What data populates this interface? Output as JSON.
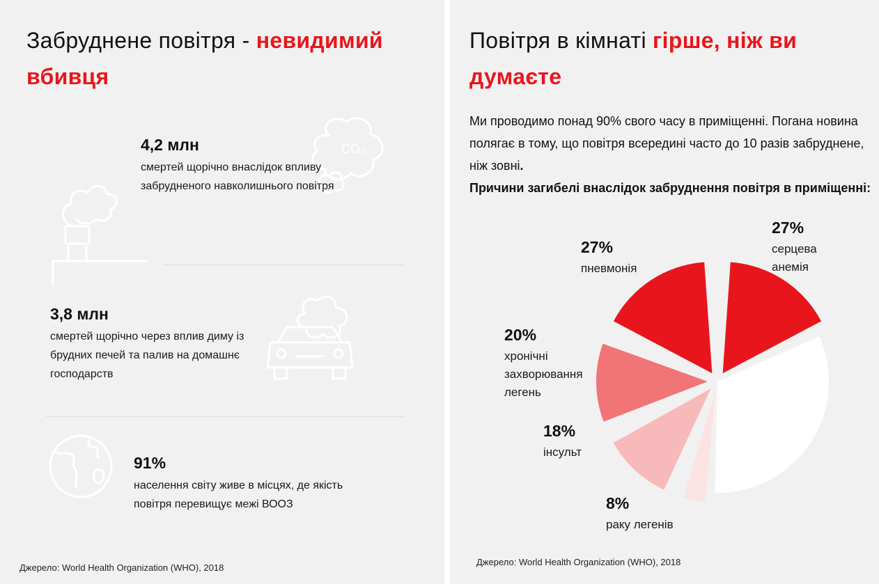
{
  "left": {
    "title": {
      "prefix": "Забруднене повітря - ",
      "accent": "невидимий вбивця"
    },
    "stats": [
      {
        "value": "4,2 млн",
        "description": "смертей щорічно внаслідок впливу забрудненого навколишнього повітря",
        "icon": "factory-smoke-co2-icon"
      },
      {
        "value": "3,8 млн",
        "description": "смертей щорічно через вплив диму із брудних печей та палив на домашнє господарств",
        "icon": "car-exhaust-icon"
      },
      {
        "value": "91%",
        "description": "населення світу живе в місцях, де якість повітря перевищує межі ВООЗ",
        "icon": "globe-icon"
      }
    ],
    "icon_label": "CO₂",
    "source": "Джерело: World Health Organization (WHO), 2018"
  },
  "right": {
    "title": {
      "prefix": "Повітря в кімнаті ",
      "accent": "гірше, ніж ви думаєте"
    },
    "intro": "Ми проводимо понад 90% свого часу в приміщенні. Погана новина полягає в тому, що повітря всередині часто до 10 разів забруднене, ніж зовні",
    "intro_end": ".",
    "reasons_heading": "Причини загибелі внаслідок забруднення повітря в приміщенні:",
    "source": "Джерело: World Health Organization (WHO), 2018"
  },
  "chart_data": {
    "type": "pie",
    "title": "",
    "slices": [
      {
        "label": "серцева анемія",
        "value": 27,
        "value_label": "27%",
        "color": "#e8161c",
        "exploded": true
      },
      {
        "label": "",
        "value": 47,
        "value_label": "",
        "color": "#ffffff",
        "exploded": false
      },
      {
        "label": "раку легенів",
        "value": 8,
        "value_label": "8%",
        "color": "#fbe3e4",
        "exploded": true
      },
      {
        "label": "інсульт",
        "value": 18,
        "value_label": "18%",
        "color": "#f8b9bb",
        "exploded": true
      },
      {
        "label": "хронічні захворювання легень",
        "value": 20,
        "value_label": "20%",
        "color": "#f17477",
        "exploded": true
      },
      {
        "label": "пневмонія",
        "value": 27,
        "value_label": "27%",
        "color": "#e8161c",
        "exploded": true
      }
    ]
  }
}
